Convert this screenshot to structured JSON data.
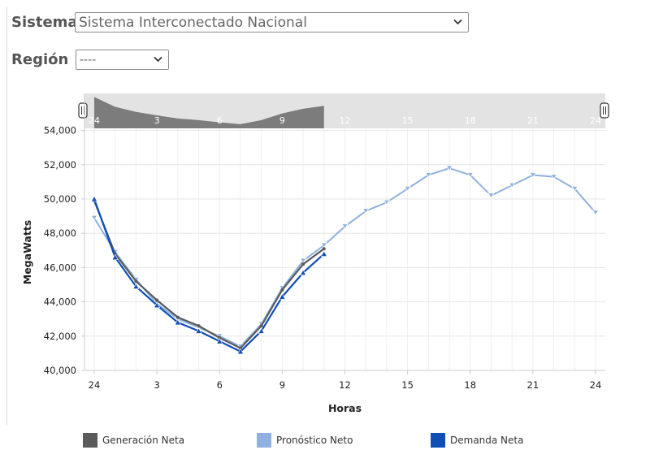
{
  "form": {
    "sistema_label": "Sistema",
    "sistema_value": "Sistema Interconectado Nacional",
    "region_label": "Región",
    "region_value": "----"
  },
  "colors": {
    "generacion": "#5b5b5b",
    "pronostico": "#8eb1de",
    "demanda": "#0f4fb5",
    "navigator": "#7c7c7c"
  },
  "chart_data": {
    "type": "line",
    "ylabel": "MegaWatts",
    "xlabel": "Horas",
    "ylim": [
      40000,
      56000
    ],
    "yticks": [
      40000,
      42000,
      44000,
      46000,
      48000,
      50000,
      52000,
      54000
    ],
    "ytick_labels": [
      "40,000",
      "42,000",
      "44,000",
      "46,000",
      "48,000",
      "50,000",
      "52,000",
      "54,000"
    ],
    "xlim": [
      0,
      24
    ],
    "xticks": [
      0,
      3,
      6,
      9,
      12,
      15,
      18,
      21,
      24
    ],
    "xtick_labels": [
      "24",
      "3",
      "6",
      "9",
      "12",
      "15",
      "18",
      "21",
      "24"
    ],
    "grid": true,
    "legend_position": "bottom",
    "series": [
      {
        "name": "Generación Neta",
        "color": "#5b5b5b",
        "x": [
          0,
          1,
          2,
          3,
          4,
          5,
          6,
          7,
          8,
          9,
          10,
          11
        ],
        "values": [
          49900,
          46800,
          45200,
          44100,
          43100,
          42600,
          41900,
          41300,
          42600,
          44700,
          46200,
          47100
        ]
      },
      {
        "name": "Pronóstico Neto",
        "color": "#8eb1de",
        "x": [
          0,
          1,
          2,
          3,
          4,
          5,
          6,
          7,
          8,
          9,
          10,
          11,
          12,
          13,
          14,
          15,
          16,
          17,
          18,
          19,
          20,
          21,
          22,
          23,
          24
        ],
        "values": [
          48900,
          46900,
          45300,
          43900,
          43000,
          42500,
          42000,
          41400,
          42700,
          44800,
          46400,
          47300,
          48400,
          49300,
          49800,
          50600,
          51400,
          51800,
          51400,
          50200,
          50800,
          51400,
          51300,
          50600,
          49200
        ]
      },
      {
        "name": "Demanda Neta",
        "color": "#0f4fb5",
        "x": [
          0,
          1,
          2,
          3,
          4,
          5,
          6,
          7,
          8,
          9,
          10,
          11
        ],
        "values": [
          50000,
          46600,
          44900,
          43800,
          42800,
          42300,
          41700,
          41100,
          42300,
          44300,
          45700,
          46800
        ]
      }
    ],
    "navigator": {
      "xticks": [
        0,
        3,
        6,
        9,
        12,
        15,
        18,
        21,
        24
      ],
      "xtick_labels": [
        "24",
        "3",
        "6",
        "9",
        "12",
        "15",
        "18",
        "21",
        "24"
      ],
      "series_x": [
        0,
        1,
        2,
        3,
        4,
        5,
        6,
        7,
        8,
        9,
        10,
        11
      ],
      "series_values": [
        49900,
        46800,
        45200,
        44100,
        43100,
        42600,
        41900,
        41300,
        42600,
        44700,
        46200,
        47100
      ]
    }
  }
}
